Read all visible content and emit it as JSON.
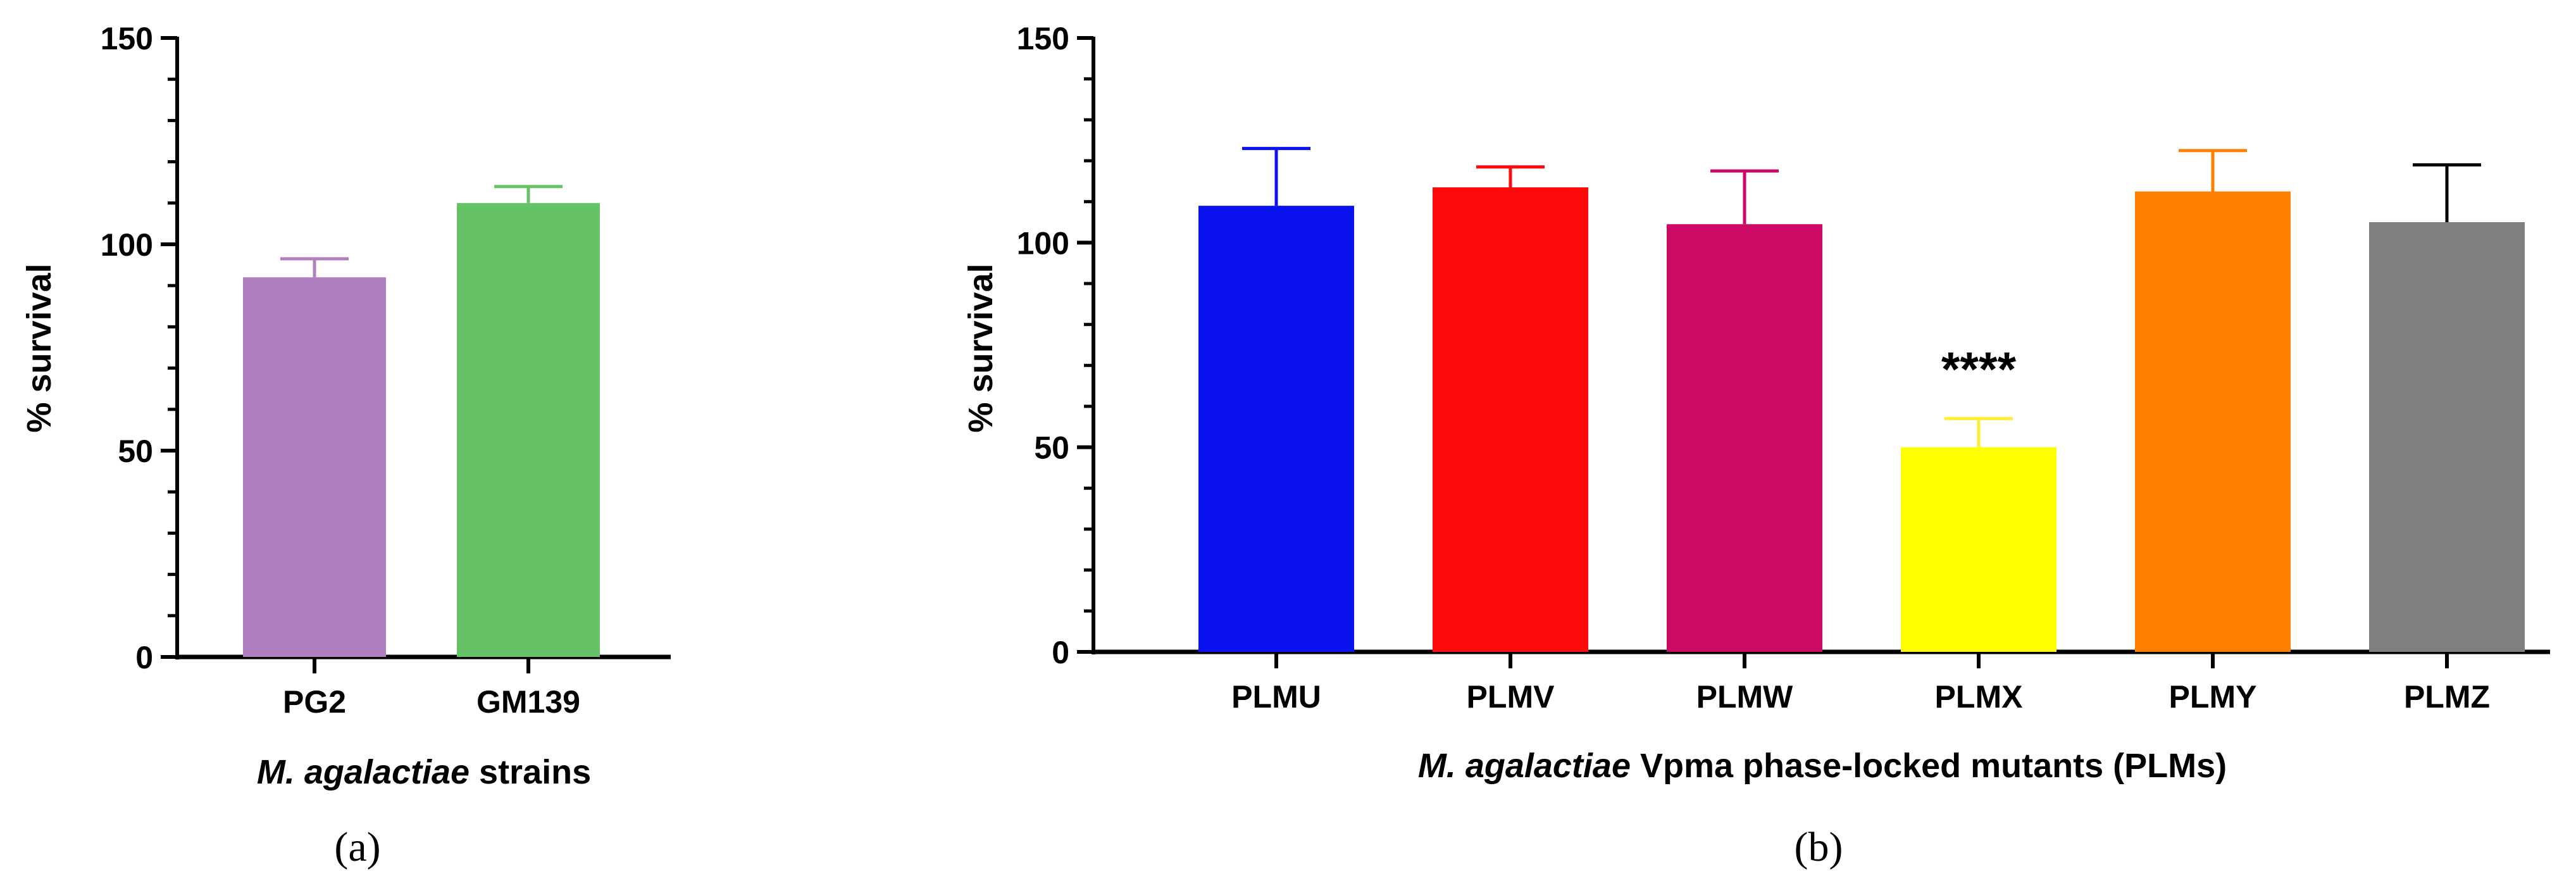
{
  "chart_data": [
    {
      "panel": "(a)",
      "type": "bar",
      "title": "",
      "xlabel_italic": "M. agalactiae",
      "xlabel_rest": " strains",
      "ylabel": "% survival",
      "ylim": [
        0,
        150
      ],
      "yticks": [
        "0",
        "50",
        "100",
        "150"
      ],
      "categories": [
        "PG2",
        "GM139"
      ],
      "values": [
        92,
        110
      ],
      "errors": [
        4.5,
        4
      ],
      "colors": [
        "#b07fbf",
        "#66c266"
      ],
      "annotations": []
    },
    {
      "panel": "(b)",
      "type": "bar",
      "title": "",
      "xlabel_italic": "M. agalactiae",
      "xlabel_rest": " Vpma phase-locked mutants (PLMs)",
      "ylabel": "% survival",
      "ylim": [
        0,
        150
      ],
      "yticks": [
        "0",
        "50",
        "100",
        "150"
      ],
      "categories": [
        "PLMU",
        "PLMV",
        "PLMW",
        "PLMX",
        "PLMY",
        "PLMZ"
      ],
      "values": [
        109,
        113.5,
        104.5,
        50,
        112.5,
        105
      ],
      "errors": [
        14,
        5,
        13,
        7,
        10,
        14
      ],
      "colors": [
        "#0a12ee",
        "#ff0a0a",
        "#cc0a66",
        "#ffff00",
        "#ff8000",
        "#7f7f7f"
      ],
      "annotations": [
        {
          "category": "PLMX",
          "text": "****"
        }
      ]
    }
  ]
}
